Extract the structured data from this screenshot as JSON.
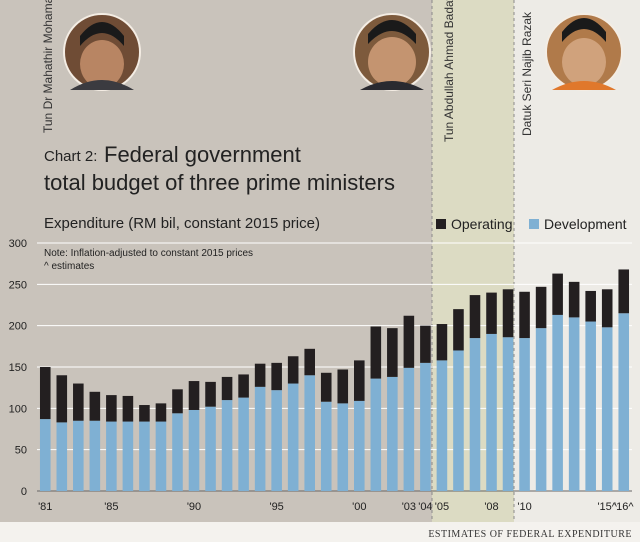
{
  "header": {
    "chart_label": "Chart 2:",
    "title_line1": "Federal government",
    "title_line2": "total budget of three prime ministers",
    "subtitle": "Expenditure (RM bil, constant 2015 price)",
    "note_line1": "Note: Inflation-adjusted to constant 2015 prices",
    "note_line2": "^ estimates",
    "source": "ESTIMATES OF FEDERAL EXPENDITURE"
  },
  "ministers": [
    {
      "name": "Tun Dr Mahathir Mohamad",
      "portrait": "portrait-photo"
    },
    {
      "name": "Tun Abdullah Ahmad Badawi",
      "portrait": "portrait-photo"
    },
    {
      "name": "Datuk Seri Najib Razak",
      "portrait": "portrait-photo"
    }
  ],
  "colors": {
    "page_bg": "#c9c3bb",
    "mahathir_band": "#c9c3bb",
    "abdullah_band": "#dcdbc3",
    "najib_band": "#edebe6",
    "operating": "#231f20",
    "development": "#7fb0d3",
    "gridline": "#ffffff"
  },
  "chart_data": {
    "type": "bar",
    "stacked": true,
    "title": "Federal government total budget of three prime ministers",
    "ylabel": "Expenditure (RM bil, constant 2015 price)",
    "ylim": [
      0,
      300
    ],
    "yticks": [
      0,
      50,
      100,
      150,
      200,
      250,
      300
    ],
    "grid": true,
    "legend_position": "top-right",
    "categories": [
      "1981",
      "1982",
      "1983",
      "1984",
      "1985",
      "1986",
      "1987",
      "1988",
      "1989",
      "1990",
      "1991",
      "1992",
      "1993",
      "1994",
      "1995",
      "1996",
      "1997",
      "1998",
      "1999",
      "2000",
      "2001",
      "2002",
      "2003",
      "2004",
      "2005",
      "2006",
      "2007",
      "2008",
      "2009",
      "2010",
      "2011",
      "2012",
      "2013",
      "2014",
      "2015",
      "2016"
    ],
    "x_tick_labels": [
      "'81",
      "",
      "",
      "",
      "'85",
      "",
      "",
      "",
      "",
      "'90",
      "",
      "",
      "",
      "",
      "'95",
      "",
      "",
      "",
      "",
      "'00",
      "",
      "",
      "'03",
      "'04",
      "'05",
      "",
      "",
      "'08",
      "",
      "'10",
      "",
      "",
      "",
      "",
      "'15^",
      "'16^"
    ],
    "series": [
      {
        "name": "Development",
        "values": [
          87,
          83,
          85,
          85,
          84,
          84,
          84,
          84,
          94,
          98,
          102,
          110,
          113,
          126,
          122,
          130,
          140,
          108,
          106,
          109,
          136,
          138,
          149,
          155,
          158,
          170,
          185,
          190,
          186,
          185,
          197,
          213,
          210,
          205,
          198,
          215
        ]
      },
      {
        "name": "Operating",
        "values": [
          63,
          57,
          45,
          35,
          32,
          31,
          20,
          22,
          29,
          35,
          30,
          28,
          28,
          28,
          33,
          33,
          32,
          35,
          41,
          49,
          63,
          59,
          63,
          45,
          44,
          50,
          52,
          50,
          58,
          56,
          50,
          50,
          43,
          37,
          46,
          53
        ]
      }
    ],
    "legend": [
      "Operating",
      "Development"
    ],
    "eras": [
      {
        "name": "Tun Dr Mahathir Mohamad",
        "from": "1981",
        "to": "2003"
      },
      {
        "name": "Tun Abdullah Ahmad Badawi",
        "from": "2004",
        "to": "2009"
      },
      {
        "name": "Datuk Seri Najib Razak",
        "from": "2010",
        "to": "2016"
      }
    ]
  }
}
